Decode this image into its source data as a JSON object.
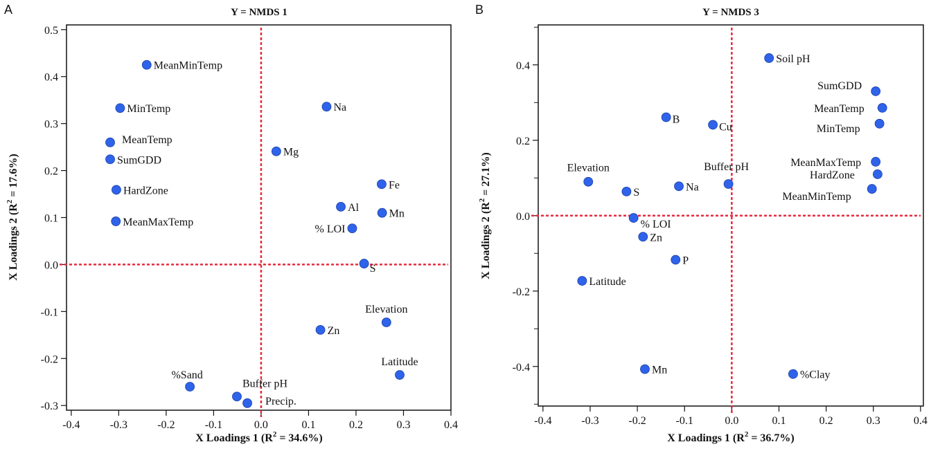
{
  "chart_data": [
    {
      "type": "scatter",
      "panel_letter": "A",
      "title": "Y = NMDS 1",
      "xlabel": "X Loadings 1 (R",
      "xlabel_sup": "2",
      "xlabel_tail": " = 34.6%)",
      "ylabel": "X Loadings 2 (R",
      "ylabel_sup": "2",
      "ylabel_tail": " = 17.6%)",
      "xlim": [
        -0.41,
        0.4
      ],
      "ylim": [
        -0.31,
        0.51
      ],
      "xticks": [
        "-0.4",
        "-0.3",
        "-0.2",
        "-0.1",
        "0.0",
        "0.1",
        "0.2",
        "0.3",
        "0.4"
      ],
      "yticks": [
        "-0.3",
        "-0.2",
        "-0.1",
        "0.0",
        "0.1",
        "0.2",
        "0.3",
        "0.4",
        "0.5"
      ],
      "reference_lines": {
        "x": 0,
        "y": 0,
        "color": "#e8293c",
        "style": "dashed"
      },
      "point_color": "#2f63ea",
      "points": [
        {
          "label": "MeanMinTemp",
          "x": -0.241,
          "y": 0.425
        },
        {
          "label": "MinTemp",
          "x": -0.297,
          "y": 0.333
        },
        {
          "label": "MeanTemp",
          "x": -0.318,
          "y": 0.26
        },
        {
          "label": "SumGDD",
          "x": -0.318,
          "y": 0.224
        },
        {
          "label": "HardZone",
          "x": -0.305,
          "y": 0.159
        },
        {
          "label": "MeanMaxTemp",
          "x": -0.306,
          "y": 0.092
        },
        {
          "label": "Na",
          "x": 0.138,
          "y": 0.336
        },
        {
          "label": "Mg",
          "x": 0.032,
          "y": 0.241
        },
        {
          "label": "Fe",
          "x": 0.254,
          "y": 0.171
        },
        {
          "label": "Al",
          "x": 0.168,
          "y": 0.123
        },
        {
          "label": "Mn",
          "x": 0.255,
          "y": 0.11
        },
        {
          "label": "% LOI",
          "x": 0.192,
          "y": 0.077
        },
        {
          "label": "S",
          "x": 0.217,
          "y": 0.002
        },
        {
          "label": "Elevation",
          "x": 0.264,
          "y": -0.123
        },
        {
          "label": "Zn",
          "x": 0.125,
          "y": -0.139
        },
        {
          "label": "Latitude",
          "x": 0.292,
          "y": -0.235
        },
        {
          "label": "%Sand",
          "x": -0.15,
          "y": -0.26
        },
        {
          "label": "Buffer pH",
          "x": -0.051,
          "y": -0.281
        },
        {
          "label": "Precip.",
          "x": -0.029,
          "y": -0.295
        }
      ]
    },
    {
      "type": "scatter",
      "panel_letter": "B",
      "title": "Y = NMDS 3",
      "xlabel": "X Loadings 1 (R",
      "xlabel_sup": "2",
      "xlabel_tail": " = 36.7%)",
      "ylabel": "X Loadings 2 (R",
      "ylabel_sup": "2",
      "ylabel_tail": " = 27.1%)",
      "xlim": [
        -0.41,
        0.406
      ],
      "ylim": [
        -0.505,
        0.506
      ],
      "xticks": [
        "-0.4",
        "-0.3",
        "-0.2",
        "-0.1",
        "0.0",
        "0.1",
        "0.2",
        "0.3",
        "0.4"
      ],
      "yticks": [
        "-0.4",
        "-0.2",
        "0.0",
        "0.2",
        "0.4"
      ],
      "reference_lines": {
        "x": 0,
        "y": 0,
        "color": "#e8293c",
        "style": "dashed"
      },
      "point_color": "#2f63ea",
      "points": [
        {
          "label": "Soil pH",
          "x": 0.079,
          "y": 0.418
        },
        {
          "label": "SumGDD",
          "x": 0.305,
          "y": 0.33
        },
        {
          "label": "MeanTemp",
          "x": 0.319,
          "y": 0.286
        },
        {
          "label": "MinTemp",
          "x": 0.313,
          "y": 0.244
        },
        {
          "label": "MeanMaxTemp",
          "x": 0.305,
          "y": 0.143
        },
        {
          "label": "HardZone",
          "x": 0.309,
          "y": 0.11
        },
        {
          "label": "MeanMinTemp",
          "x": 0.297,
          "y": 0.071
        },
        {
          "label": "B",
          "x": -0.139,
          "y": 0.261
        },
        {
          "label": "Cu",
          "x": -0.04,
          "y": 0.241
        },
        {
          "label": "Elevation",
          "x": -0.304,
          "y": 0.09
        },
        {
          "label": "S",
          "x": -0.223,
          "y": 0.064
        },
        {
          "label": "Na",
          "x": -0.112,
          "y": 0.078
        },
        {
          "label": "Buffer pH",
          "x": -0.007,
          "y": 0.084
        },
        {
          "label": "% LOI",
          "x": -0.208,
          "y": -0.006
        },
        {
          "label": "Zn",
          "x": -0.188,
          "y": -0.056
        },
        {
          "label": "P",
          "x": -0.119,
          "y": -0.117
        },
        {
          "label": "Latitude",
          "x": -0.317,
          "y": -0.173
        },
        {
          "label": "Mn",
          "x": -0.184,
          "y": -0.407
        },
        {
          "label": "%Clay",
          "x": 0.13,
          "y": -0.42
        }
      ]
    }
  ]
}
